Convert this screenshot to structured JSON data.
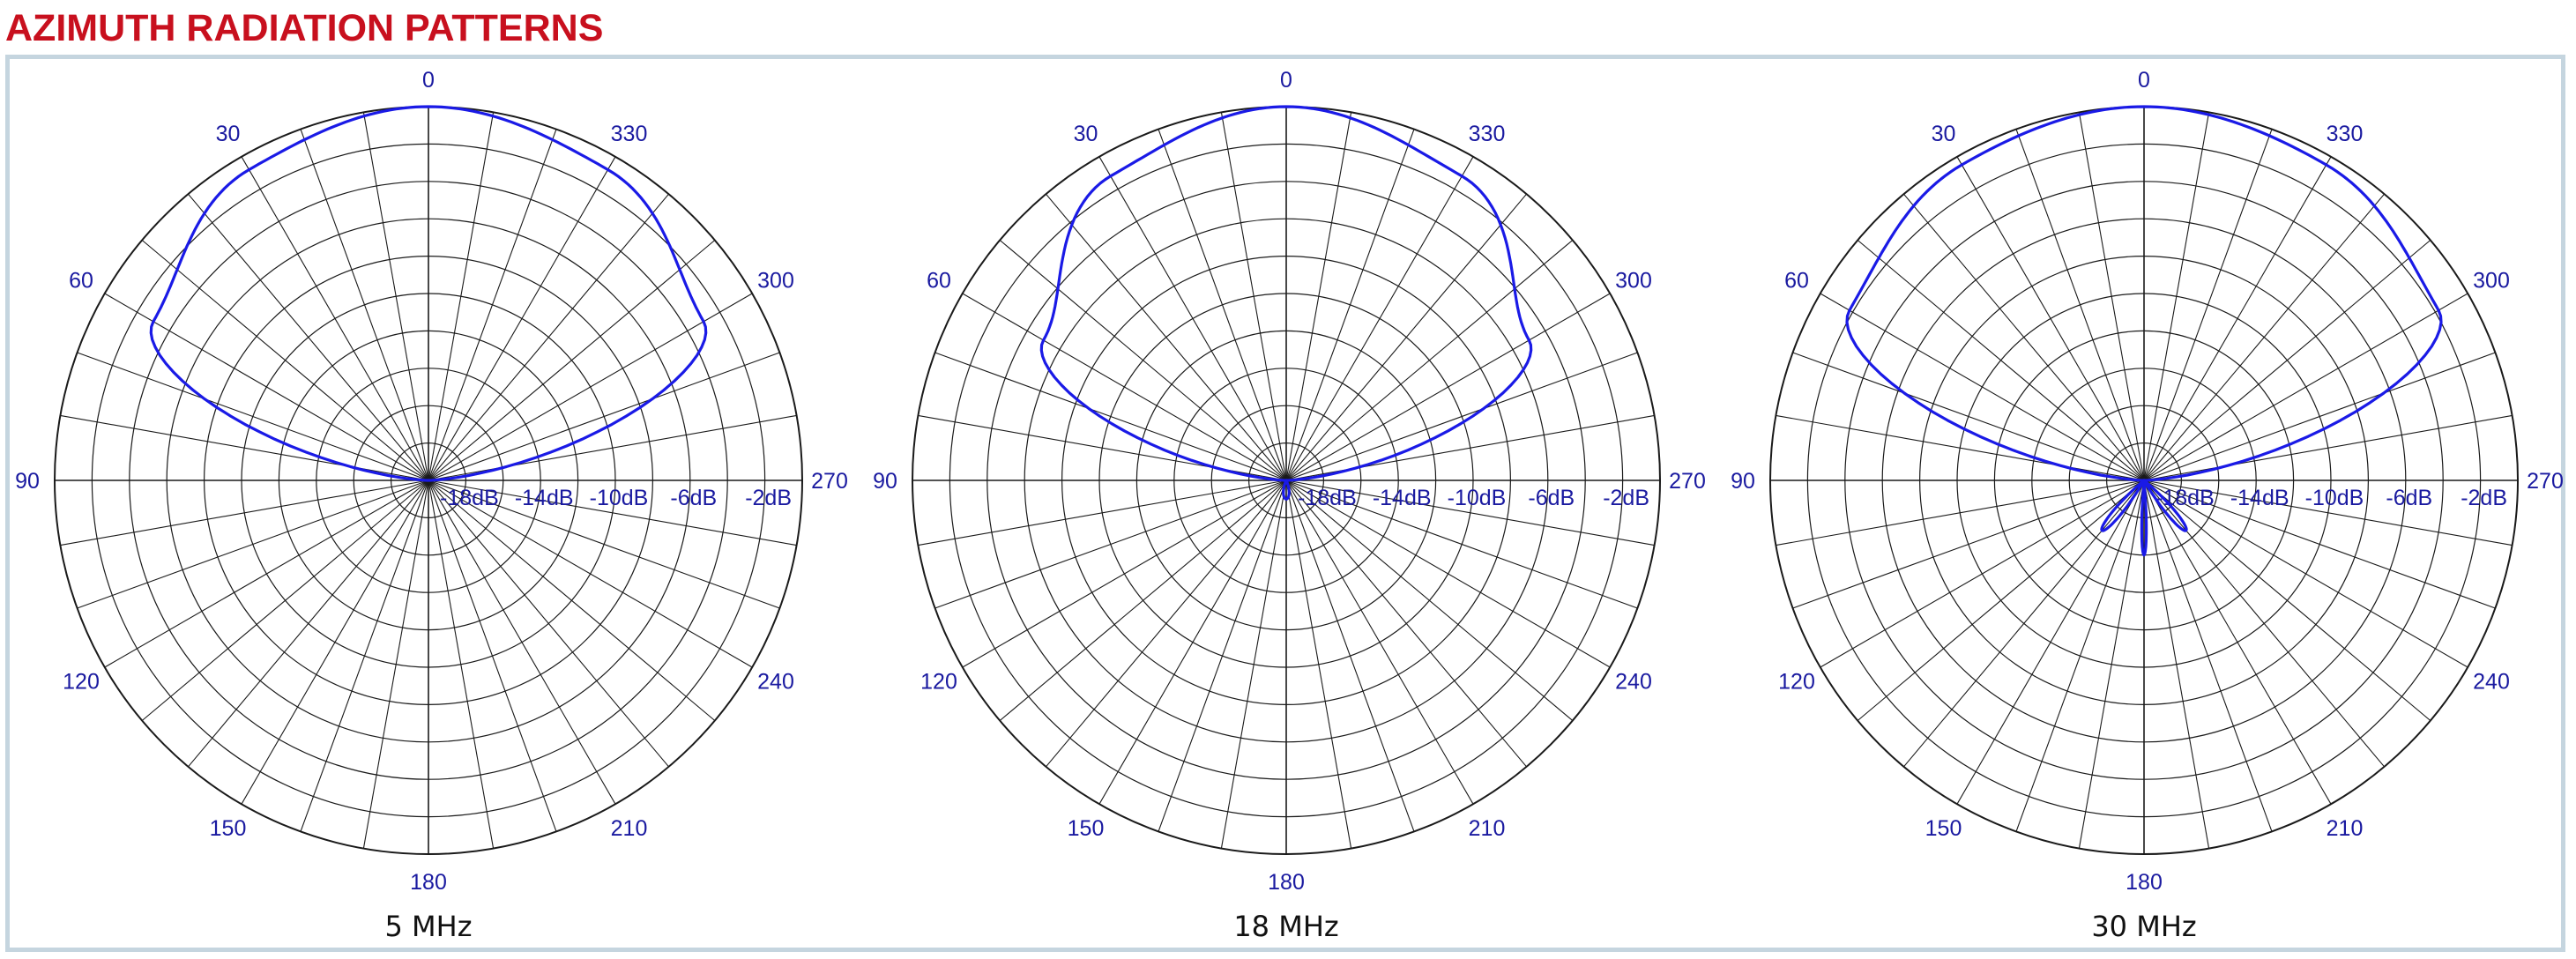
{
  "page": {
    "title": "AZIMUTH RADIATION PATTERNS"
  },
  "colors": {
    "title": "#c8101e",
    "pattern": "#1a1ae6",
    "labels": "#1a1aa0",
    "grid": "#1a1a1a",
    "frame": "#c5d5df"
  },
  "chart_data": [
    {
      "type": "polar",
      "title": "5 MHz",
      "angle_labels": [
        "0",
        "30",
        "60",
        "90",
        "120",
        "150",
        "180",
        "210",
        "240",
        "270",
        "300",
        "330"
      ],
      "radial_labels": [
        "-18dB",
        "-14dB",
        "-10dB",
        "-6dB",
        "-2dB"
      ],
      "r_unit": "dB",
      "r_range": [
        -20,
        0
      ],
      "angular_grid_step_deg": 10,
      "radial_rings_dB": [
        -18,
        -16,
        -14,
        -12,
        -10,
        -8,
        -6,
        -4,
        -2,
        0
      ],
      "series": [
        {
          "type": "cardioid",
          "pattern": [
            {
              "deg": 0,
              "dB": 0
            },
            {
              "deg": 30,
              "dB": -0.8
            },
            {
              "deg": 60,
              "dB": -3
            },
            {
              "deg": 90,
              "dB": -20
            },
            {
              "deg": 270,
              "dB": -20
            },
            {
              "deg": 300,
              "dB": -3
            },
            {
              "deg": 330,
              "dB": -0.8
            }
          ]
        }
      ]
    },
    {
      "type": "polar",
      "title": "18 MHz",
      "angle_labels": [
        "0",
        "30",
        "60",
        "90",
        "120",
        "150",
        "180",
        "210",
        "240",
        "270",
        "300",
        "330"
      ],
      "radial_labels": [
        "-18dB",
        "-14dB",
        "-10dB",
        "-6dB",
        "-2dB"
      ],
      "r_unit": "dB",
      "r_range": [
        -20,
        0
      ],
      "angular_grid_step_deg": 10,
      "radial_rings_dB": [
        -18,
        -16,
        -14,
        -12,
        -10,
        -8,
        -6,
        -4,
        -2,
        0
      ],
      "series": [
        {
          "type": "cardioid",
          "pattern": [
            {
              "deg": 0,
              "dB": 0
            },
            {
              "deg": 30,
              "dB": -1.2
            },
            {
              "deg": 60,
              "dB": -5
            },
            {
              "deg": 90,
              "dB": -20
            },
            {
              "deg": 270,
              "dB": -20
            },
            {
              "deg": 300,
              "dB": -5
            },
            {
              "deg": 330,
              "dB": -1.2
            }
          ]
        },
        {
          "type": "lobe",
          "center_deg": 180,
          "half_width_deg": 25,
          "peak_dB": -19
        }
      ]
    },
    {
      "type": "polar",
      "title": "30 MHz",
      "angle_labels": [
        "0",
        "30",
        "60",
        "90",
        "120",
        "150",
        "180",
        "210",
        "240",
        "270",
        "300",
        "330"
      ],
      "radial_labels": [
        "-18dB",
        "-14dB",
        "-10dB",
        "-6dB",
        "-2dB"
      ],
      "r_unit": "dB",
      "r_range": [
        -20,
        0
      ],
      "angular_grid_step_deg": 10,
      "radial_rings_dB": [
        -18,
        -16,
        -14,
        -12,
        -10,
        -8,
        -6,
        -4,
        -2,
        0
      ],
      "series": [
        {
          "type": "cardioid",
          "pattern": [
            {
              "deg": 0,
              "dB": 0
            },
            {
              "deg": 30,
              "dB": -0.5
            },
            {
              "deg": 60,
              "dB": -1.8
            },
            {
              "deg": 90,
              "dB": -20
            },
            {
              "deg": 270,
              "dB": -20
            },
            {
              "deg": 300,
              "dB": -1.8
            },
            {
              "deg": 330,
              "dB": -0.5
            }
          ]
        },
        {
          "type": "lobe",
          "center_deg": 180,
          "half_width_deg": 5,
          "peak_dB": -16
        },
        {
          "type": "lobe",
          "center_deg": 140,
          "half_width_deg": 10,
          "peak_dB": -16.5
        },
        {
          "type": "lobe",
          "center_deg": 220,
          "half_width_deg": 10,
          "peak_dB": -16.5
        }
      ]
    }
  ]
}
